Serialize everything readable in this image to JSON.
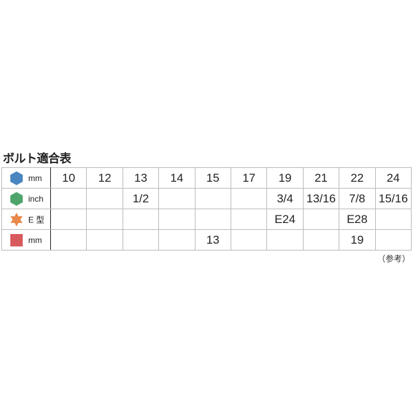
{
  "title": "ボルト適合表",
  "note": "（参考）",
  "rows": [
    {
      "icon": "hexagon-icon",
      "color": "#4a86c0",
      "label": "mm",
      "cells": [
        "10",
        "12",
        "13",
        "14",
        "15",
        "17",
        "19",
        "21",
        "22",
        "24"
      ]
    },
    {
      "icon": "hexagon-icon",
      "color": "#4ea56c",
      "label": "inch",
      "cells": [
        "",
        "",
        "1/2",
        "",
        "",
        "",
        "3/4",
        "13/16",
        "7/8",
        "15/16"
      ]
    },
    {
      "icon": "star-icon",
      "color": "#e8884a",
      "label": "E 型",
      "cells": [
        "",
        "",
        "",
        "",
        "",
        "",
        "E24",
        "",
        "E28",
        ""
      ]
    },
    {
      "icon": "square-icon",
      "color": "#d95a5e",
      "label": "mm",
      "cells": [
        "",
        "",
        "",
        "",
        "13",
        "",
        "",
        "",
        "19",
        ""
      ]
    }
  ]
}
